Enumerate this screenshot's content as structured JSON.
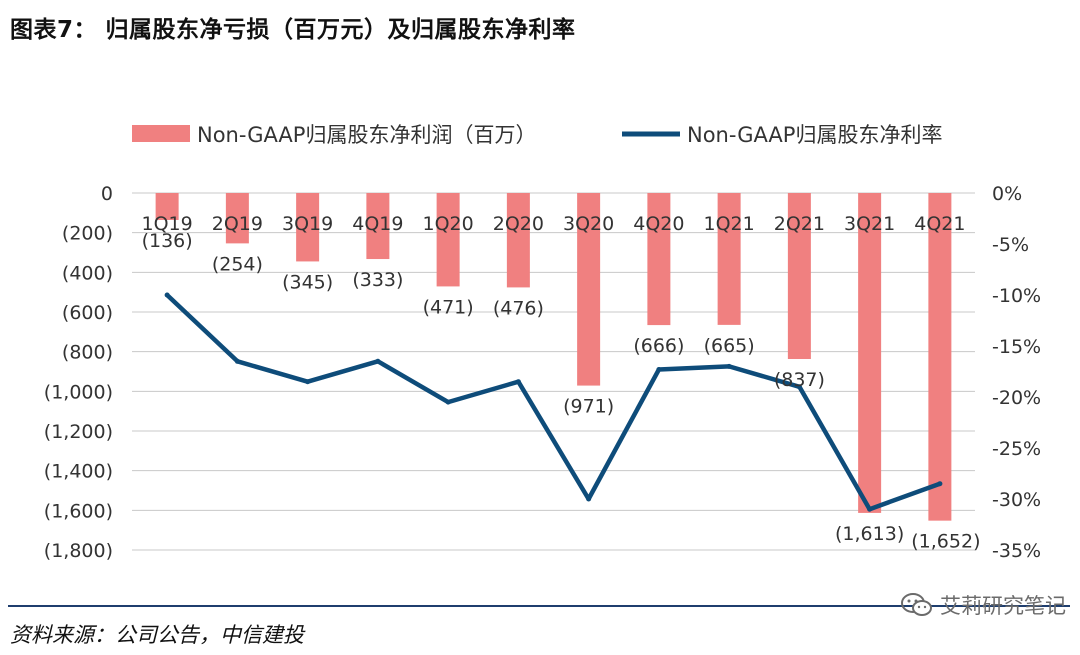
{
  "figure_title": "图表7： 归属股东净亏损（百万元）及归属股东净利率",
  "chart_data": {
    "type": "bar+line",
    "categories": [
      "1Q19",
      "2Q19",
      "3Q19",
      "4Q19",
      "1Q20",
      "2Q20",
      "3Q20",
      "4Q20",
      "1Q21",
      "2Q21",
      "3Q21",
      "4Q21"
    ],
    "series": [
      {
        "name": "Non-GAAP归属股东净利润（百万）",
        "type": "bar",
        "axis": "left",
        "color": "#f08080",
        "values": [
          -136,
          -254,
          -345,
          -333,
          -471,
          -476,
          -971,
          -666,
          -665,
          -837,
          -1613,
          -1652
        ],
        "labels": [
          "(136)",
          "(254)",
          "(345)",
          "(333)",
          "(471)",
          "(476)",
          "(971)",
          "(666)",
          "(665)",
          "(837)",
          "(1,613)",
          "(1,652)"
        ]
      },
      {
        "name": "Non-GAAP归属股东净利率",
        "type": "line",
        "axis": "right",
        "color": "#0e4c7a",
        "values": [
          -10.0,
          -16.5,
          -18.5,
          -16.5,
          -20.5,
          -18.5,
          -30.0,
          -17.3,
          -17.0,
          -19.0,
          -31.0,
          -28.5
        ]
      }
    ],
    "left_axis": {
      "ylim": [
        -1800,
        0
      ],
      "ticks": [
        0,
        -200,
        -400,
        -600,
        -800,
        -1000,
        -1200,
        -1400,
        -1600,
        -1800
      ],
      "tick_labels": [
        "0",
        "(200)",
        "(400)",
        "(600)",
        "(800)",
        "(1,000)",
        "(1,200)",
        "(1,400)",
        "(1,600)",
        "(1,800)"
      ]
    },
    "right_axis": {
      "ylim": [
        -35,
        0
      ],
      "ticks": [
        0,
        -5,
        -10,
        -15,
        -20,
        -25,
        -30,
        -35
      ],
      "tick_labels": [
        "0%",
        "-5%",
        "-10%",
        "-15%",
        "-20%",
        "-25%",
        "-30%",
        "-35%"
      ]
    },
    "gridlines": true,
    "legend_position": "top"
  },
  "source": "资料来源：公司公告，中信建投",
  "watermark": "艾莉研究笔记"
}
